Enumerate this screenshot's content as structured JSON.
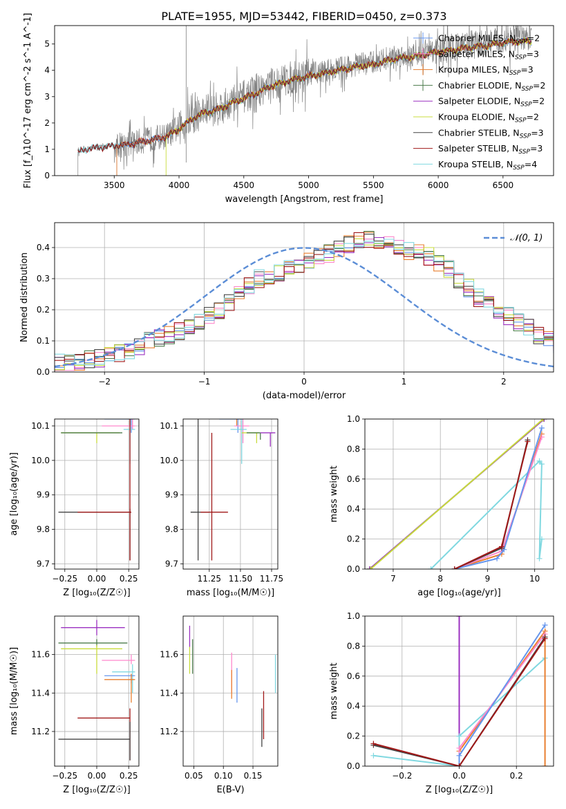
{
  "figure": {
    "title": "PLATE=1955, MJD=53442, FIBERID=0450, z=0.373"
  },
  "colors": {
    "Chabrier MILES": "#6495ed",
    "Salpeter MILES": "#ff88cc",
    "Kroupa MILES": "#e87e2e",
    "Chabrier ELODIE": "#4a7a4a",
    "Salpeter ELODIE": "#9b30c0",
    "Kroupa ELODIE": "#c8dc3c",
    "Chabrier STELIB": "#444444",
    "Salpeter STELIB": "#a01818",
    "Kroupa STELIB": "#80d8e0",
    "gaussian": "#5b8dd6"
  },
  "chart_data": [
    {
      "id": "spectrum",
      "type": "line",
      "xlabel": "wavelength [Angstrom, rest frame]",
      "ylabel": "Flux [f_λ10^-17 erg cm^-2 s^-1 A^-1]",
      "xlim": [
        3040,
        6890
      ],
      "ylim": [
        0,
        5.7
      ],
      "xticks": [
        3500,
        4000,
        4500,
        5000,
        5500,
        6000,
        6500
      ],
      "yticks": [
        0,
        1,
        2,
        3,
        4,
        5
      ],
      "grid": false,
      "legend_position": "top-right",
      "legend": [
        {
          "label": "Chabrier MILES, N",
          "sub": "SSP",
          "val": "=2",
          "series": "Chabrier MILES"
        },
        {
          "label": "Salpeter MILES, N",
          "sub": "SSP",
          "val": "=3",
          "series": "Salpeter MILES"
        },
        {
          "label": "Kroupa MILES, N",
          "sub": "SSP",
          "val": "=3",
          "series": "Kroupa MILES"
        },
        {
          "label": "Chabrier ELODIE, N",
          "sub": "SSP",
          "val": "=2",
          "series": "Chabrier ELODIE"
        },
        {
          "label": "Salpeter ELODIE, N",
          "sub": "SSP",
          "val": "=2",
          "series": "Salpeter ELODIE"
        },
        {
          "label": "Kroupa ELODIE, N",
          "sub": "SSP",
          "val": "=2",
          "series": "Kroupa ELODIE"
        },
        {
          "label": "Chabrier STELIB, N",
          "sub": "SSP",
          "val": "=3",
          "series": "Chabrier STELIB"
        },
        {
          "label": "Salpeter STELIB, N",
          "sub": "SSP",
          "val": "=3",
          "series": "Salpeter STELIB"
        },
        {
          "label": "Kroupa STELIB, N",
          "sub": "SSP",
          "val": "=4",
          "series": "Kroupa STELIB"
        }
      ],
      "continuum": [
        [
          3220,
          0.9
        ],
        [
          3300,
          1.05
        ],
        [
          3400,
          1.1
        ],
        [
          3500,
          1.15
        ],
        [
          3600,
          1.2
        ],
        [
          3700,
          1.3
        ],
        [
          3800,
          1.4
        ],
        [
          3900,
          1.5
        ],
        [
          4000,
          1.8
        ],
        [
          4100,
          2.2
        ],
        [
          4200,
          2.45
        ],
        [
          4300,
          2.55
        ],
        [
          4400,
          2.8
        ],
        [
          4500,
          3.0
        ],
        [
          4600,
          3.2
        ],
        [
          4700,
          3.45
        ],
        [
          4800,
          3.6
        ],
        [
          4900,
          3.75
        ],
        [
          5000,
          3.85
        ],
        [
          5100,
          3.95
        ],
        [
          5200,
          4.05
        ],
        [
          5300,
          4.15
        ],
        [
          5400,
          4.25
        ],
        [
          5500,
          4.3
        ],
        [
          5600,
          4.45
        ],
        [
          5700,
          4.55
        ],
        [
          5800,
          4.6
        ],
        [
          5900,
          4.7
        ],
        [
          6000,
          4.8
        ],
        [
          6100,
          4.85
        ],
        [
          6200,
          4.95
        ],
        [
          6300,
          5.0
        ],
        [
          6400,
          5.05
        ],
        [
          6500,
          5.15
        ],
        [
          6600,
          5.2
        ],
        [
          6720,
          5.2
        ]
      ]
    },
    {
      "id": "residuals",
      "type": "histogram",
      "xlabel": "(data-model)/error",
      "ylabel": "Normed distribution",
      "xlim": [
        -2.5,
        2.5
      ],
      "ylim": [
        0,
        0.48
      ],
      "xticks": [
        -2,
        -1,
        0,
        1,
        2
      ],
      "yticks": [
        0.0,
        0.1,
        0.2,
        0.3,
        0.4
      ],
      "grid": true,
      "legend_position": "top-right",
      "gaussian_label": "𝒩(0, 1)",
      "bin_width": 0.1,
      "base": [
        0.03,
        0.03,
        0.035,
        0.04,
        0.045,
        0.05,
        0.06,
        0.07,
        0.08,
        0.1,
        0.11,
        0.12,
        0.13,
        0.14,
        0.16,
        0.18,
        0.2,
        0.22,
        0.25,
        0.28,
        0.3,
        0.31,
        0.32,
        0.33,
        0.34,
        0.36,
        0.37,
        0.38,
        0.4,
        0.41,
        0.42,
        0.43,
        0.42,
        0.41,
        0.4,
        0.39,
        0.38,
        0.37,
        0.35,
        0.33,
        0.3,
        0.27,
        0.24,
        0.22,
        0.2,
        0.18,
        0.16,
        0.14,
        0.12,
        0.1,
        0.09,
        0.08,
        0.07,
        0.06,
        0.05,
        0.045,
        0.04,
        0.04,
        0.035,
        0.03
      ]
    },
    {
      "id": "age_vs_Z",
      "type": "scatter",
      "xlabel": "Z [log₁₀(Z/Z☉)]",
      "ylabel": "age  [log₁₀(age/yr)]",
      "xlim": [
        -0.33,
        0.33
      ],
      "ylim": [
        9.685,
        10.12
      ],
      "xticks": [
        -0.25,
        0.0,
        0.25
      ],
      "xticklabels": [
        "−0.25",
        "0.00",
        "0.25"
      ],
      "yticks": [
        9.7,
        9.8,
        9.9,
        10.0,
        10.1
      ],
      "grid": true,
      "points": [
        {
          "s": "Kroupa ELODIE",
          "x": 0.0,
          "y": 10.08,
          "xl": -0.28,
          "xr": 0.18,
          "yl": 10.05,
          "yh": 10.08
        },
        {
          "s": "Chabrier ELODIE",
          "x": -0.28,
          "y": 10.08,
          "xl": -0.28,
          "xr": 0.2,
          "yl": 10.08,
          "yh": 10.08
        },
        {
          "s": "Kroupa MILES",
          "x": 0.26,
          "y": 10.14,
          "xl": 0.04,
          "xr": 0.27,
          "yl": 10.1,
          "yh": 10.15
        },
        {
          "s": "Chabrier MILES",
          "x": 0.27,
          "y": 10.12,
          "xl": 0.06,
          "xr": 0.3,
          "yl": 10.08,
          "yh": 10.13
        },
        {
          "s": "Salpeter MILES",
          "x": 0.28,
          "y": 10.1,
          "xl": 0.04,
          "xr": 0.3,
          "yl": 10.09,
          "yh": 10.12
        },
        {
          "s": "Kroupa STELIB",
          "x": 0.26,
          "y": 10.09,
          "xl": 0.21,
          "xr": 0.3,
          "yl": 9.99,
          "yh": 10.12
        },
        {
          "s": "Chabrier STELIB",
          "x": 0.26,
          "y": 9.85,
          "xl": -0.3,
          "xr": 0.27,
          "yl": 9.71,
          "yh": 9.86
        },
        {
          "s": "Salpeter STELIB",
          "x": 0.26,
          "y": 9.85,
          "xl": -0.15,
          "xr": 0.27,
          "yl": 9.71,
          "yh": 10.15
        }
      ]
    },
    {
      "id": "age_vs_mass",
      "type": "scatter",
      "xlabel": "mass [log₁₀(M/M☉)]",
      "ylabel": "",
      "xlim": [
        11.04,
        11.8
      ],
      "ylim": [
        9.685,
        10.12
      ],
      "xticks": [
        11.25,
        11.5,
        11.75
      ],
      "xticklabels": [
        "11.25",
        "11.50",
        "11.75"
      ],
      "yticks": [
        9.7,
        9.8,
        9.9,
        10.0,
        10.1
      ],
      "grid": true,
      "points": [
        {
          "s": "Chabrier STELIB",
          "x": 11.16,
          "y": 9.85,
          "xl": 11.1,
          "xr": 11.25,
          "yl": 9.71,
          "yh": 10.13
        },
        {
          "s": "Salpeter STELIB",
          "x": 11.27,
          "y": 9.85,
          "xl": 11.18,
          "xr": 11.4,
          "yl": 9.71,
          "yh": 10.08
        },
        {
          "s": "Kroupa MILES",
          "x": 11.47,
          "y": 10.13,
          "xl": 11.44,
          "xr": 11.5,
          "yl": 10.1,
          "yh": 10.15
        },
        {
          "s": "Chabrier MILES",
          "x": 11.48,
          "y": 10.12,
          "xl": 11.33,
          "xr": 11.52,
          "yl": 10.08,
          "yh": 10.15
        },
        {
          "s": "Salpeter MILES",
          "x": 11.52,
          "y": 10.1,
          "xl": 11.45,
          "xr": 11.57,
          "yl": 10.05,
          "yh": 10.12
        },
        {
          "s": "Kroupa STELIB",
          "x": 11.51,
          "y": 10.09,
          "xl": 11.42,
          "xr": 11.55,
          "yl": 9.99,
          "yh": 10.12
        },
        {
          "s": "Kroupa ELODIE",
          "x": 11.63,
          "y": 10.08,
          "xl": 11.51,
          "xr": 11.65,
          "yl": 10.05,
          "yh": 10.08
        },
        {
          "s": "Chabrier ELODIE",
          "x": 11.66,
          "y": 10.08,
          "xl": 11.55,
          "xr": 11.66,
          "yl": 10.06,
          "yh": 10.08
        },
        {
          "s": "Salpeter ELODIE",
          "x": 11.74,
          "y": 10.08,
          "xl": 11.66,
          "xr": 11.78,
          "yl": 10.04,
          "yh": 10.08
        }
      ]
    },
    {
      "id": "cum_mass_vs_age",
      "type": "line",
      "xlabel": "age  [log₁₀(age/yr)]",
      "ylabel": "mass weight",
      "xlim": [
        6.4,
        10.4
      ],
      "ylim": [
        0,
        1.0
      ],
      "xticks": [
        7,
        8,
        9,
        10
      ],
      "yticks": [
        0.0,
        0.2,
        0.4,
        0.6,
        0.8,
        1.0
      ],
      "grid": true,
      "series": [
        {
          "s": "Chabrier ELODIE",
          "x": [
            6.5,
            10.2
          ],
          "y": [
            0.0,
            1.0
          ]
        },
        {
          "s": "Salpeter ELODIE",
          "x": [
            6.5,
            10.2
          ],
          "y": [
            0.0,
            1.0
          ]
        },
        {
          "s": "Kroupa ELODIE",
          "x": [
            6.52,
            10.18
          ],
          "y": [
            0.0,
            1.0
          ]
        },
        {
          "s": "Kroupa STELIB",
          "x": [
            7.8,
            10.1,
            10.15,
            10.1,
            10.15
          ],
          "y": [
            0.0,
            0.72,
            0.7,
            0.07,
            0.2
          ]
        },
        {
          "s": "Kroupa MILES",
          "x": [
            8.3,
            9.3,
            10.15
          ],
          "y": [
            0.0,
            0.1,
            0.9
          ]
        },
        {
          "s": "Salpeter MILES",
          "x": [
            8.3,
            9.3,
            10.15
          ],
          "y": [
            0.0,
            0.12,
            0.88
          ]
        },
        {
          "s": "Chabrier MILES",
          "x": [
            8.3,
            9.2,
            9.35,
            10.15
          ],
          "y": [
            0.0,
            0.07,
            0.13,
            0.94
          ]
        },
        {
          "s": "Chabrier STELIB",
          "x": [
            8.3,
            9.3,
            9.85
          ],
          "y": [
            0.0,
            0.14,
            0.86
          ]
        },
        {
          "s": "Salpeter STELIB",
          "x": [
            8.3,
            9.3,
            9.85
          ],
          "y": [
            0.0,
            0.15,
            0.85
          ]
        }
      ]
    },
    {
      "id": "mass_vs_Z",
      "type": "scatter",
      "xlabel": "Z [log₁₀(Z/Z☉)]",
      "ylabel": "mass [log₁₀(M/M☉)]",
      "xlim": [
        -0.33,
        0.33
      ],
      "ylim": [
        11.02,
        11.8
      ],
      "xticks": [
        -0.25,
        0.0,
        0.25
      ],
      "xticklabels": [
        "−0.25",
        "0.00",
        "0.25"
      ],
      "yticks": [
        11.2,
        11.4,
        11.6
      ],
      "grid": true,
      "points": [
        {
          "s": "Salpeter ELODIE",
          "x": 0.0,
          "y": 11.74,
          "xl": -0.28,
          "xr": 0.22,
          "yl": 11.7,
          "yh": 11.78
        },
        {
          "s": "Chabrier ELODIE",
          "x": 0.0,
          "y": 11.66,
          "xl": -0.3,
          "xr": 0.24,
          "yl": 11.64,
          "yh": 11.68
        },
        {
          "s": "Kroupa ELODIE",
          "x": 0.0,
          "y": 11.63,
          "xl": -0.28,
          "xr": 0.2,
          "yl": 11.5,
          "yh": 11.65
        },
        {
          "s": "Salpeter MILES",
          "x": 0.27,
          "y": 11.57,
          "xl": 0.04,
          "xr": 0.3,
          "yl": 11.55,
          "yh": 11.6
        },
        {
          "s": "Kroupa STELIB",
          "x": 0.28,
          "y": 11.51,
          "xl": 0.12,
          "xr": 0.3,
          "yl": 11.4,
          "yh": 11.55
        },
        {
          "s": "Chabrier MILES",
          "x": 0.27,
          "y": 11.49,
          "xl": 0.06,
          "xr": 0.3,
          "yl": 11.45,
          "yh": 11.5
        },
        {
          "s": "Kroupa MILES",
          "x": 0.27,
          "y": 11.47,
          "xl": 0.06,
          "xr": 0.3,
          "yl": 11.35,
          "yh": 11.5
        },
        {
          "s": "Salpeter STELIB",
          "x": 0.26,
          "y": 11.27,
          "xl": -0.15,
          "xr": 0.26,
          "yl": 11.05,
          "yh": 11.32
        },
        {
          "s": "Chabrier STELIB",
          "x": 0.26,
          "y": 11.16,
          "xl": -0.3,
          "xr": 0.26,
          "yl": 11.05,
          "yh": 11.25
        }
      ]
    },
    {
      "id": "mass_vs_ebv",
      "type": "scatter",
      "xlabel": "E(B-V)",
      "ylabel": "",
      "xlim": [
        0.032,
        0.192
      ],
      "ylim": [
        11.02,
        11.8
      ],
      "xticks": [
        0.05,
        0.1,
        0.15
      ],
      "xticklabels": [
        "0.05",
        "0.10",
        "0.15"
      ],
      "yticks": [
        11.2,
        11.4,
        11.6
      ],
      "grid": true,
      "points": [
        {
          "s": "Salpeter ELODIE",
          "x": 0.043,
          "y": 11.7,
          "yl": 11.64,
          "yh": 11.75
        },
        {
          "s": "Kroupa ELODIE",
          "x": 0.043,
          "y": 11.56,
          "yl": 11.5,
          "yh": 11.64
        },
        {
          "s": "Chabrier ELODIE",
          "x": 0.048,
          "y": 11.6,
          "yl": 11.5,
          "yh": 11.68
        },
        {
          "s": "Salpeter MILES",
          "x": 0.114,
          "y": 11.5,
          "yl": 11.4,
          "yh": 11.61
        },
        {
          "s": "Kroupa MILES",
          "x": 0.114,
          "y": 11.45,
          "yl": 11.37,
          "yh": 11.52
        },
        {
          "s": "Chabrier MILES",
          "x": 0.123,
          "y": 11.45,
          "yl": 11.35,
          "yh": 11.53
        },
        {
          "s": "Chabrier STELIB",
          "x": 0.165,
          "y": 11.2,
          "yl": 11.12,
          "yh": 11.32
        },
        {
          "s": "Salpeter STELIB",
          "x": 0.168,
          "y": 11.3,
          "yl": 11.16,
          "yh": 11.41
        },
        {
          "s": "Kroupa STELIB",
          "x": 0.188,
          "y": 11.5,
          "yl": 11.4,
          "yh": 11.6
        }
      ]
    },
    {
      "id": "cum_mass_vs_Z",
      "type": "line",
      "xlabel": "Z [log₁₀(Z/Z☉)]",
      "ylabel": "mass weight",
      "xlim": [
        -0.33,
        0.33
      ],
      "ylim": [
        0,
        1.0
      ],
      "xticks": [
        -0.2,
        0.0,
        0.2
      ],
      "xticklabels": [
        "−0.2",
        "0.0",
        "0.2"
      ],
      "yticks": [
        0.0,
        0.2,
        0.4,
        0.6,
        0.8,
        1.0
      ],
      "grid": true,
      "series": [
        {
          "s": "Kroupa ELODIE",
          "x": [
            0.0,
            0.0
          ],
          "y": [
            0.0,
            1.0
          ]
        },
        {
          "s": "Chabrier ELODIE",
          "x": [
            0.0,
            0.0
          ],
          "y": [
            0.0,
            1.0
          ]
        },
        {
          "s": "Salpeter ELODIE",
          "x": [
            0.0,
            0.0
          ],
          "y": [
            0.0,
            1.0
          ]
        },
        {
          "s": "Kroupa STELIB",
          "x": [
            -0.3,
            0.0,
            0.0,
            0.3
          ],
          "y": [
            0.07,
            0.0,
            0.2,
            0.72
          ]
        },
        {
          "s": "Kroupa MILES",
          "x": [
            0.0,
            0.0,
            0.3,
            0.3
          ],
          "y": [
            0.0,
            0.1,
            0.9,
            0.0
          ]
        },
        {
          "s": "Salpeter MILES",
          "x": [
            0.0,
            0.0,
            0.3
          ],
          "y": [
            0.0,
            0.12,
            0.88
          ]
        },
        {
          "s": "Chabrier MILES",
          "x": [
            0.0,
            0.0,
            0.3
          ],
          "y": [
            0.0,
            0.07,
            0.94
          ]
        },
        {
          "s": "Chabrier STELIB",
          "x": [
            -0.3,
            0.0,
            0.3
          ],
          "y": [
            0.14,
            0.0,
            0.86
          ]
        },
        {
          "s": "Salpeter STELIB",
          "x": [
            -0.3,
            0.0,
            0.3
          ],
          "y": [
            0.15,
            0.0,
            0.85
          ]
        }
      ]
    }
  ]
}
